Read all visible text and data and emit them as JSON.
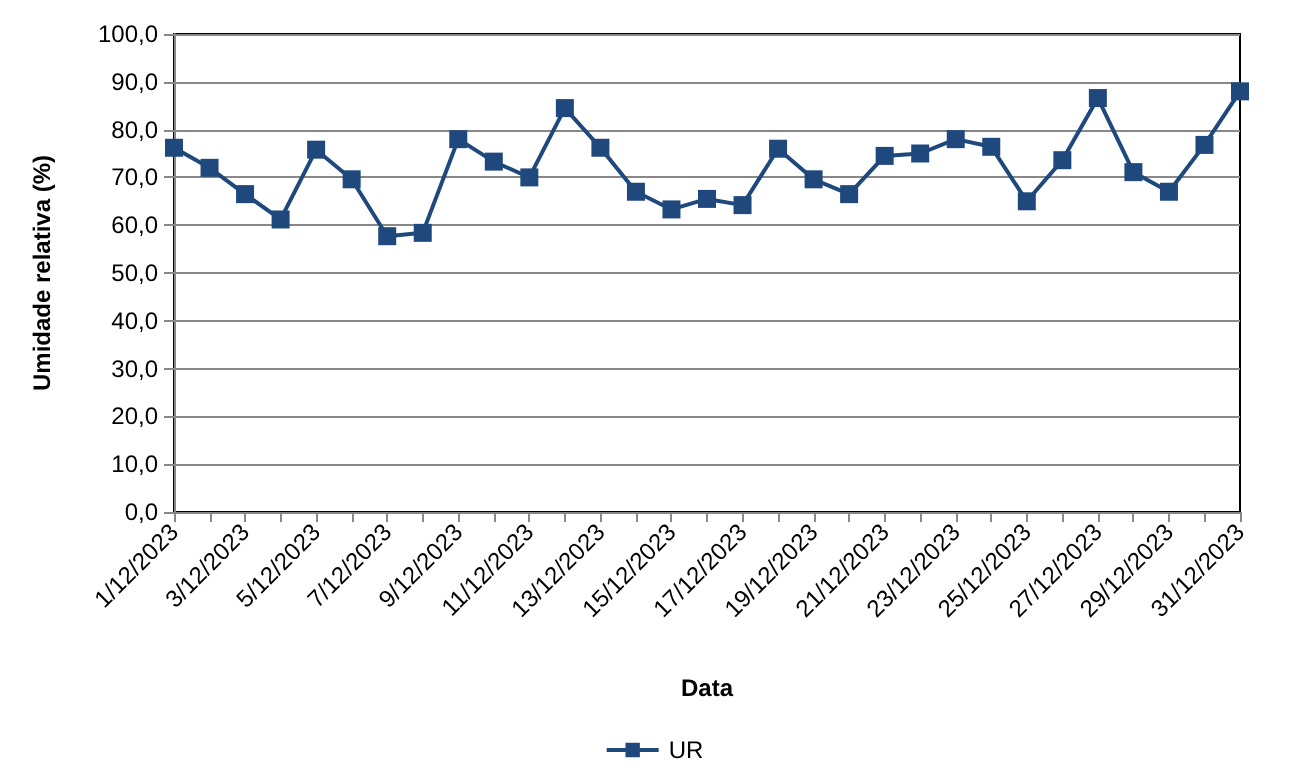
{
  "chart_data": {
    "type": "line",
    "xlabel": "Data",
    "ylabel": "Umidade relativa (%)",
    "categories": [
      "1/12/2023",
      null,
      "3/12/2023",
      null,
      "5/12/2023",
      null,
      "7/12/2023",
      null,
      "9/12/2023",
      null,
      "11/12/2023",
      null,
      "13/12/2023",
      null,
      "15/12/2023",
      null,
      "17/12/2023",
      null,
      "19/12/2023",
      null,
      "21/12/2023",
      null,
      "23/12/2023",
      null,
      "25/12/2023",
      null,
      "27/12/2023",
      null,
      "29/12/2023",
      null,
      "31/12/2023"
    ],
    "series": [
      {
        "name": "UR",
        "color": "#1f497d",
        "values": [
          76.2,
          72,
          66.5,
          61.2,
          75.8,
          69.6,
          57.7,
          58.4,
          78,
          73.3,
          70,
          84.5,
          76.2,
          67,
          63.3,
          65.5,
          64.2,
          76,
          69.6,
          66.5,
          74.5,
          75,
          78,
          76.4,
          65,
          73.6,
          86.6,
          71.1,
          67,
          76.8,
          88
        ]
      }
    ],
    "ylim": [
      0,
      100
    ],
    "yticks": [
      {
        "value": 0,
        "label": "0,0"
      },
      {
        "value": 10,
        "label": "10,0"
      },
      {
        "value": 20,
        "label": "20,0"
      },
      {
        "value": 30,
        "label": "30,0"
      },
      {
        "value": 40,
        "label": "40,0"
      },
      {
        "value": 50,
        "label": "50,0"
      },
      {
        "value": 60,
        "label": "60,0"
      },
      {
        "value": 70,
        "label": "70,0"
      },
      {
        "value": 80,
        "label": "80,0"
      },
      {
        "value": 90,
        "label": "90,0"
      },
      {
        "value": 100,
        "label": "100,0"
      }
    ],
    "grid": "y",
    "legend": "bottom",
    "marker": "square",
    "line_style": "solid"
  }
}
